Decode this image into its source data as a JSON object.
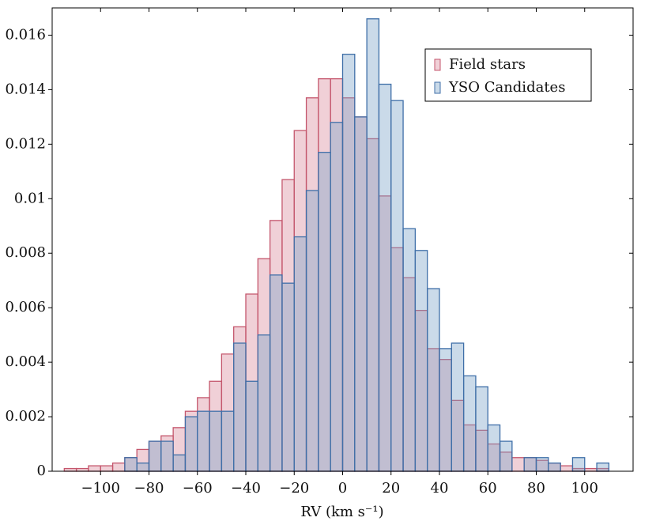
{
  "chart_data": {
    "type": "histogram",
    "xlabel": "RV (km s⁻¹)",
    "bins": [
      -115,
      -110,
      -105,
      -100,
      -95,
      -90,
      -85,
      -80,
      -75,
      -70,
      -65,
      -60,
      -55,
      -50,
      -45,
      -40,
      -35,
      -30,
      -25,
      -20,
      -15,
      -10,
      -5,
      0,
      5,
      10,
      15,
      20,
      25,
      30,
      35,
      40,
      45,
      50,
      55,
      60,
      65,
      70,
      75,
      80,
      85,
      90,
      95,
      100,
      105,
      110
    ],
    "series": [
      {
        "name": "Field stars",
        "color": "#d98a9c",
        "edgecolor": "#c4566c",
        "values": [
          0.0001,
          0.0001,
          0.0002,
          0.0002,
          0.0003,
          0.0005,
          0.0008,
          0.0011,
          0.0013,
          0.0016,
          0.0022,
          0.0027,
          0.0033,
          0.0043,
          0.0053,
          0.0065,
          0.0078,
          0.0092,
          0.0107,
          0.0125,
          0.0137,
          0.0144,
          0.0144,
          0.0137,
          0.013,
          0.0122,
          0.0101,
          0.0082,
          0.0071,
          0.0059,
          0.0045,
          0.0041,
          0.0026,
          0.0017,
          0.0015,
          0.001,
          0.0007,
          0.0005,
          0.0005,
          0.0004,
          0.0003,
          0.0002,
          0.0001,
          0.0001,
          0.0001
        ]
      },
      {
        "name": "YSO Candidates",
        "color": "#7ba3c8",
        "edgecolor": "#3f6fa8",
        "values": [
          0,
          0,
          0,
          0,
          0,
          0.0005,
          0.0003,
          0.0011,
          0.0011,
          0.0006,
          0.002,
          0.0022,
          0.0022,
          0.0022,
          0.0047,
          0.0033,
          0.005,
          0.0072,
          0.0069,
          0.0086,
          0.0103,
          0.0117,
          0.0128,
          0.0153,
          0.013,
          0.0166,
          0.0142,
          0.0136,
          0.0089,
          0.0081,
          0.0067,
          0.0045,
          0.0047,
          0.0035,
          0.0031,
          0.0017,
          0.0011,
          0,
          0.0005,
          0.0005,
          0.0003,
          0,
          0.0005,
          0,
          0.0003
        ]
      }
    ],
    "xlim": [
      -120,
      120
    ],
    "ylim": [
      0,
      0.017
    ],
    "xticks": [
      {
        "value": -100,
        "label": "−100"
      },
      {
        "value": -80,
        "label": "−80"
      },
      {
        "value": -60,
        "label": "−60"
      },
      {
        "value": -40,
        "label": "−40"
      },
      {
        "value": -20,
        "label": "−20"
      },
      0,
      20,
      40,
      60,
      80,
      100
    ],
    "yticks": [
      0,
      0.002,
      0.004,
      0.006,
      0.008,
      0.01,
      0.012,
      0.014,
      0.016
    ],
    "legend": "upper right"
  }
}
